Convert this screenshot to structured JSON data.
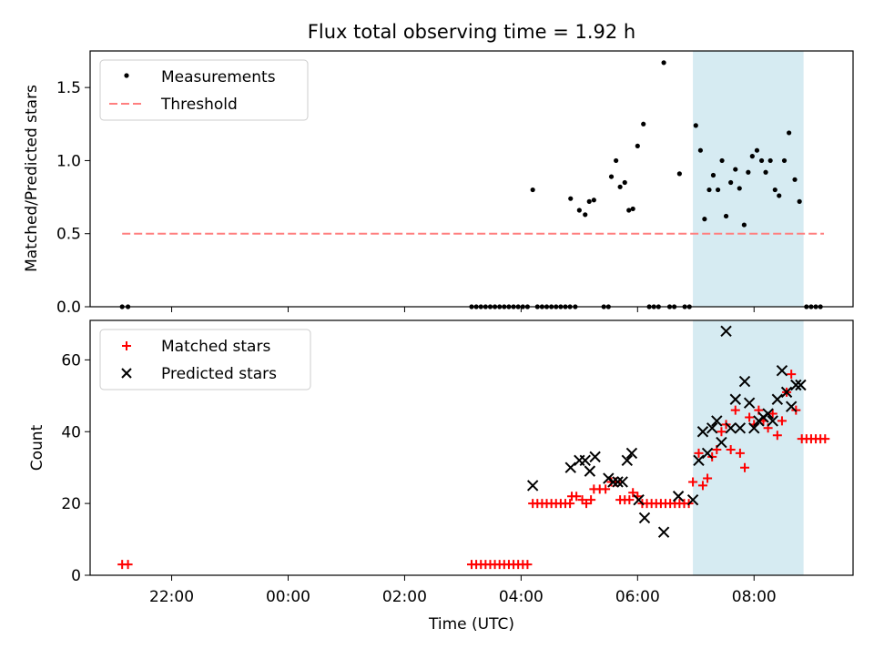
{
  "title": "Flux total observing time = 1.92 h",
  "chart_data": [
    {
      "type": "scatter",
      "title": "Flux total observing time = 1.92 h",
      "xlabel": "",
      "ylabel": "Matched/Predicted stars",
      "x_unit": "hours since 00:00 UTC (negative = previous day)",
      "xlim": [
        -3.4,
        9.7
      ],
      "ylim": [
        0,
        1.75
      ],
      "yticks": [
        0.0,
        0.5,
        1.0,
        1.5
      ],
      "ytick_labels": [
        "0.0",
        "0.5",
        "1.0",
        "1.5"
      ],
      "xticks": [
        -2,
        0,
        2,
        4,
        6,
        8
      ],
      "legend": {
        "position": "top-left",
        "entries": [
          "Measurements",
          "Threshold"
        ]
      },
      "shaded_span": {
        "x": [
          6.95,
          8.85
        ],
        "color": "#add8e6"
      },
      "threshold": {
        "name": "Threshold",
        "y": 0.5,
        "x": [
          -2.85,
          9.2
        ],
        "color": "#ff7f7f",
        "style": "dashed"
      },
      "series": [
        {
          "name": "Measurements",
          "color": "#000000",
          "points": [
            [
              -2.85,
              0
            ],
            [
              -2.75,
              0
            ],
            [
              3.15,
              0
            ],
            [
              3.23,
              0
            ],
            [
              3.31,
              0
            ],
            [
              3.39,
              0
            ],
            [
              3.47,
              0
            ],
            [
              3.55,
              0
            ],
            [
              3.63,
              0
            ],
            [
              3.71,
              0
            ],
            [
              3.79,
              0
            ],
            [
              3.87,
              0
            ],
            [
              3.95,
              0
            ],
            [
              4.03,
              0
            ],
            [
              4.11,
              0
            ],
            [
              4.2,
              0.8
            ],
            [
              4.28,
              0
            ],
            [
              4.36,
              0
            ],
            [
              4.44,
              0
            ],
            [
              4.52,
              0
            ],
            [
              4.6,
              0
            ],
            [
              4.68,
              0
            ],
            [
              4.76,
              0
            ],
            [
              4.84,
              0
            ],
            [
              4.85,
              0.74
            ],
            [
              4.93,
              0
            ],
            [
              5.0,
              0.66
            ],
            [
              5.1,
              0.63
            ],
            [
              5.17,
              0.72
            ],
            [
              5.25,
              0.73
            ],
            [
              5.42,
              0
            ],
            [
              5.5,
              0
            ],
            [
              5.55,
              0.89
            ],
            [
              5.63,
              1.0
            ],
            [
              5.7,
              0.82
            ],
            [
              5.78,
              0.85
            ],
            [
              5.85,
              0.66
            ],
            [
              5.92,
              0.67
            ],
            [
              6.0,
              1.1
            ],
            [
              6.1,
              1.25
            ],
            [
              6.2,
              0
            ],
            [
              6.28,
              0
            ],
            [
              6.36,
              0
            ],
            [
              6.45,
              1.67
            ],
            [
              6.55,
              0
            ],
            [
              6.63,
              0
            ],
            [
              6.72,
              0.91
            ],
            [
              6.81,
              0
            ],
            [
              6.89,
              0
            ],
            [
              7.0,
              1.24
            ],
            [
              7.08,
              1.07
            ],
            [
              7.15,
              0.6
            ],
            [
              7.23,
              0.8
            ],
            [
              7.3,
              0.9
            ],
            [
              7.38,
              0.8
            ],
            [
              7.45,
              1.0
            ],
            [
              7.52,
              0.62
            ],
            [
              7.6,
              0.85
            ],
            [
              7.68,
              0.94
            ],
            [
              7.75,
              0.81
            ],
            [
              7.83,
              0.56
            ],
            [
              7.9,
              0.92
            ],
            [
              7.97,
              1.03
            ],
            [
              8.05,
              1.07
            ],
            [
              8.13,
              1.0
            ],
            [
              8.2,
              0.92
            ],
            [
              8.28,
              1.0
            ],
            [
              8.36,
              0.8
            ],
            [
              8.43,
              0.76
            ],
            [
              8.52,
              1.0
            ],
            [
              8.6,
              1.19
            ],
            [
              8.7,
              0.87
            ],
            [
              8.78,
              0.72
            ],
            [
              8.9,
              0
            ],
            [
              8.98,
              0
            ],
            [
              9.06,
              0
            ],
            [
              9.14,
              0
            ]
          ]
        }
      ]
    },
    {
      "type": "scatter",
      "title": "",
      "xlabel": "Time (UTC)",
      "ylabel": "Count",
      "x_unit": "hours since 00:00 UTC (negative = previous day)",
      "xlim": [
        -3.4,
        9.7
      ],
      "ylim": [
        0,
        71
      ],
      "yticks": [
        0,
        20,
        40,
        60
      ],
      "ytick_labels": [
        "0",
        "20",
        "40",
        "60"
      ],
      "xticks": [
        -2,
        0,
        2,
        4,
        6,
        8
      ],
      "xtick_labels": [
        "22:00",
        "00:00",
        "02:00",
        "04:00",
        "06:00",
        "08:00"
      ],
      "legend": {
        "position": "top-left",
        "entries": [
          "Matched stars",
          "Predicted stars"
        ]
      },
      "shaded_span": {
        "x": [
          6.95,
          8.85
        ],
        "color": "#add8e6"
      },
      "series": [
        {
          "name": "Matched stars",
          "marker": "+",
          "color": "#ff0000",
          "points": [
            [
              -2.85,
              3
            ],
            [
              -2.75,
              3
            ],
            [
              3.15,
              3
            ],
            [
              3.23,
              3
            ],
            [
              3.31,
              3
            ],
            [
              3.39,
              3
            ],
            [
              3.47,
              3
            ],
            [
              3.55,
              3
            ],
            [
              3.63,
              3
            ],
            [
              3.71,
              3
            ],
            [
              3.79,
              3
            ],
            [
              3.87,
              3
            ],
            [
              3.95,
              3
            ],
            [
              4.03,
              3
            ],
            [
              4.11,
              3
            ],
            [
              4.2,
              20
            ],
            [
              4.28,
              20
            ],
            [
              4.36,
              20
            ],
            [
              4.44,
              20
            ],
            [
              4.52,
              20
            ],
            [
              4.6,
              20
            ],
            [
              4.68,
              20
            ],
            [
              4.76,
              20
            ],
            [
              4.84,
              20
            ],
            [
              4.87,
              22
            ],
            [
              4.95,
              22
            ],
            [
              5.05,
              21
            ],
            [
              5.12,
              20
            ],
            [
              5.2,
              21
            ],
            [
              5.25,
              24
            ],
            [
              5.35,
              24
            ],
            [
              5.45,
              24
            ],
            [
              5.55,
              26
            ],
            [
              5.63,
              26
            ],
            [
              5.7,
              21
            ],
            [
              5.78,
              21
            ],
            [
              5.86,
              21
            ],
            [
              5.92,
              23
            ],
            [
              6.0,
              22
            ],
            [
              6.08,
              20
            ],
            [
              6.16,
              20
            ],
            [
              6.24,
              20
            ],
            [
              6.32,
              20
            ],
            [
              6.4,
              20
            ],
            [
              6.48,
              20
            ],
            [
              6.56,
              20
            ],
            [
              6.64,
              20
            ],
            [
              6.72,
              20
            ],
            [
              6.8,
              20
            ],
            [
              6.88,
              20
            ],
            [
              6.95,
              26
            ],
            [
              7.05,
              34
            ],
            [
              7.12,
              25
            ],
            [
              7.2,
              27
            ],
            [
              7.28,
              33
            ],
            [
              7.36,
              35
            ],
            [
              7.44,
              40
            ],
            [
              7.52,
              42
            ],
            [
              7.6,
              35
            ],
            [
              7.68,
              46
            ],
            [
              7.76,
              34
            ],
            [
              7.84,
              30
            ],
            [
              7.92,
              44
            ],
            [
              8.0,
              42
            ],
            [
              8.08,
              46
            ],
            [
              8.16,
              43
            ],
            [
              8.24,
              41
            ],
            [
              8.32,
              45
            ],
            [
              8.4,
              39
            ],
            [
              8.48,
              43
            ],
            [
              8.56,
              51
            ],
            [
              8.64,
              56
            ],
            [
              8.72,
              46
            ],
            [
              8.82,
              38
            ],
            [
              8.9,
              38
            ],
            [
              8.98,
              38
            ],
            [
              9.06,
              38
            ],
            [
              9.14,
              38
            ],
            [
              9.22,
              38
            ]
          ]
        },
        {
          "name": "Predicted stars",
          "marker": "x",
          "color": "#000000",
          "points": [
            [
              4.2,
              25
            ],
            [
              4.85,
              30
            ],
            [
              5.0,
              32
            ],
            [
              5.1,
              32
            ],
            [
              5.18,
              29
            ],
            [
              5.27,
              33
            ],
            [
              5.5,
              27
            ],
            [
              5.58,
              26
            ],
            [
              5.66,
              26
            ],
            [
              5.74,
              26
            ],
            [
              5.82,
              32
            ],
            [
              5.9,
              34
            ],
            [
              6.02,
              21
            ],
            [
              6.12,
              16
            ],
            [
              6.45,
              12
            ],
            [
              6.7,
              22
            ],
            [
              6.95,
              21
            ],
            [
              7.05,
              32
            ],
            [
              7.12,
              40
            ],
            [
              7.2,
              34
            ],
            [
              7.28,
              41
            ],
            [
              7.36,
              43
            ],
            [
              7.44,
              37
            ],
            [
              7.52,
              68
            ],
            [
              7.6,
              41
            ],
            [
              7.68,
              49
            ],
            [
              7.76,
              41
            ],
            [
              7.84,
              54
            ],
            [
              7.92,
              48
            ],
            [
              8.0,
              41
            ],
            [
              8.08,
              43
            ],
            [
              8.16,
              44
            ],
            [
              8.24,
              45
            ],
            [
              8.32,
              43
            ],
            [
              8.4,
              49
            ],
            [
              8.48,
              57
            ],
            [
              8.56,
              51
            ],
            [
              8.64,
              47
            ],
            [
              8.72,
              53
            ],
            [
              8.8,
              53
            ]
          ]
        }
      ]
    }
  ]
}
